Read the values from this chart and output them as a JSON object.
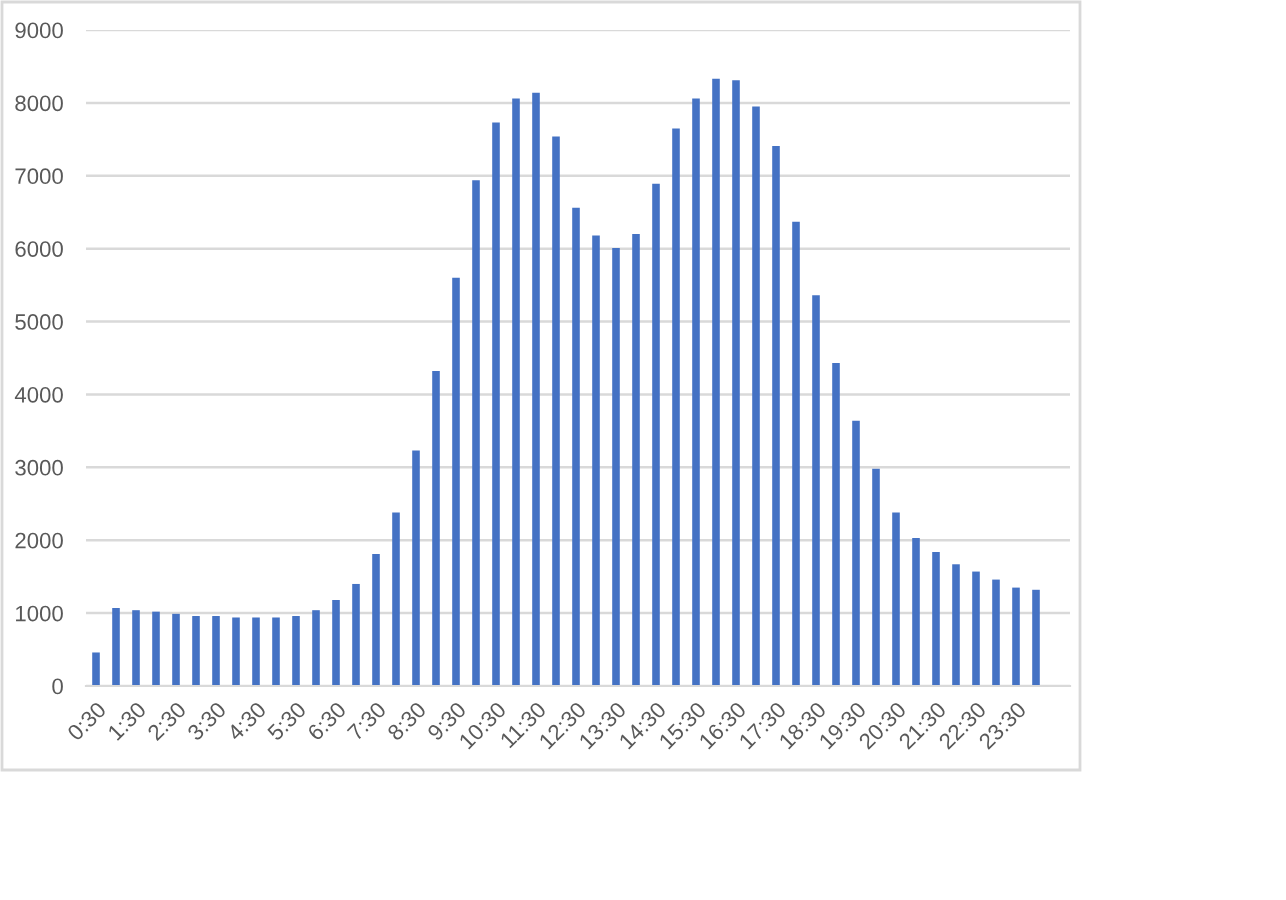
{
  "chart_data": {
    "type": "bar",
    "categories": [
      "0:30",
      null,
      "1:30",
      null,
      "2:30",
      null,
      "3:30",
      null,
      "4:30",
      null,
      "5:30",
      null,
      "6:30",
      null,
      "7:30",
      null,
      "8:30",
      null,
      "9:30",
      null,
      "10:30",
      null,
      "11:30",
      null,
      "12:30",
      null,
      "13:30",
      null,
      "14:30",
      null,
      "15:30",
      null,
      "16:30",
      null,
      "17:30",
      null,
      "18:30",
      null,
      "19:30",
      null,
      "20:30",
      null,
      "21:30",
      null,
      "22:30",
      null,
      "23:30",
      null
    ],
    "values": [
      460,
      1070,
      1040,
      1020,
      990,
      960,
      960,
      940,
      940,
      940,
      960,
      1040,
      1180,
      1400,
      1810,
      2380,
      3230,
      4320,
      5600,
      6940,
      7730,
      8060,
      8140,
      7540,
      6560,
      6180,
      6010,
      6200,
      6890,
      7650,
      8060,
      8330,
      8310,
      7950,
      7410,
      6370,
      5360,
      4430,
      3640,
      2980,
      2380,
      2030,
      1840,
      1670,
      1570,
      1460,
      1350,
      1320
    ],
    "color": "#4472c4",
    "ylim": [
      0,
      9000
    ],
    "yticks": [
      0,
      1000,
      2000,
      3000,
      4000,
      5000,
      6000,
      7000,
      8000,
      9000
    ],
    "grid": "y"
  }
}
